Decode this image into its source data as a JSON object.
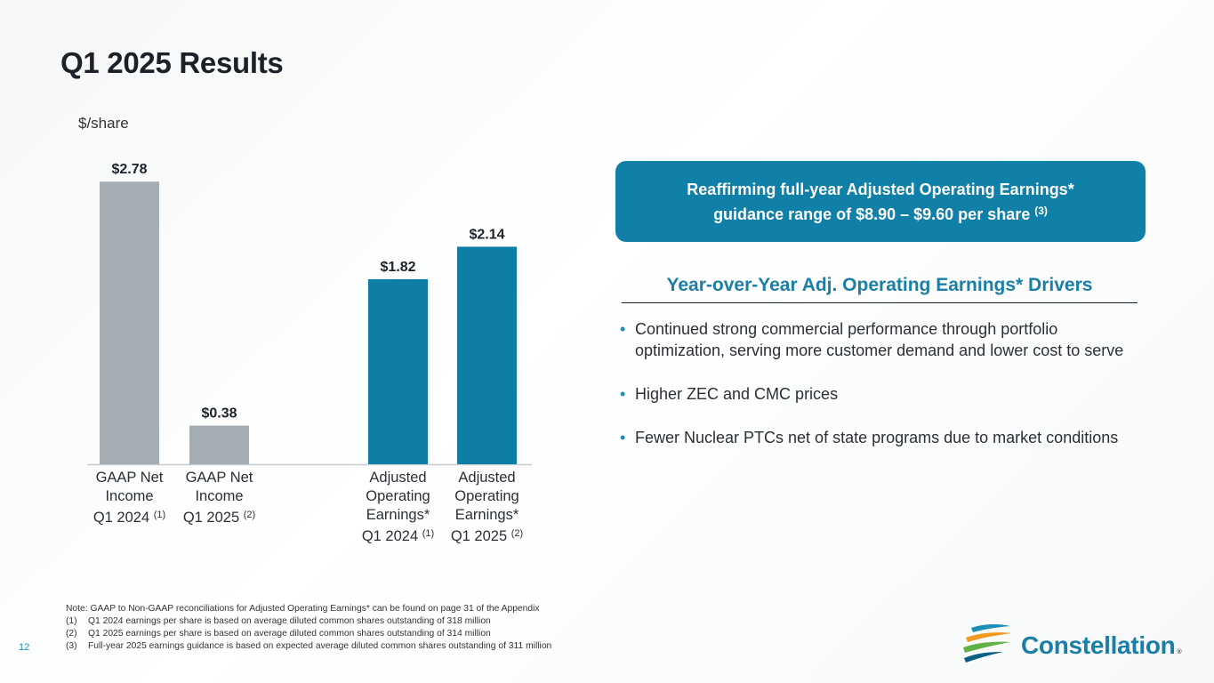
{
  "page": {
    "title": "Q1 2025 Results",
    "unit_label": "$/share",
    "page_number": "12"
  },
  "chart_data": {
    "type": "bar",
    "title": "Q1 2025 Results",
    "ylabel": "$/share",
    "xlabel": "",
    "ylim": [
      0,
      3
    ],
    "grid": false,
    "categories": [
      {
        "line1": "GAAP Net",
        "line2": "Income",
        "line3": "",
        "last": "Q1 2024",
        "note": "(1)"
      },
      {
        "line1": "GAAP Net",
        "line2": "Income",
        "line3": "",
        "last": "Q1 2025",
        "note": "(2)"
      },
      {
        "line1": "Adjusted",
        "line2": "Operating",
        "line3": "Earnings*",
        "last": "Q1 2024",
        "note": "(1)"
      },
      {
        "line1": "Adjusted",
        "line2": "Operating",
        "line3": "Earnings*",
        "last": "Q1 2025",
        "note": "(2)"
      }
    ],
    "values": [
      2.78,
      0.38,
      1.82,
      2.14
    ],
    "labels": [
      "$2.78",
      "$0.38",
      "$1.82",
      "$2.14"
    ],
    "colors": [
      "#a5aeb5",
      "#a5aeb5",
      "#0f7ea6",
      "#0f7ea6"
    ]
  },
  "callout": {
    "line1": "Reaffirming full-year Adjusted Operating Earnings*",
    "line2": "guidance range of $8.90 – $9.60 per share",
    "note": "(3)"
  },
  "drivers": {
    "title": "Year-over-Year Adj. Operating Earnings* Drivers",
    "bullet_char": "•",
    "items": [
      "Continued strong commercial performance through portfolio optimization, serving more customer demand and lower cost to serve",
      "Higher ZEC and CMC prices",
      "Fewer Nuclear PTCs net of state programs due to market conditions"
    ]
  },
  "notes": {
    "main": "Note: GAAP to Non-GAAP reconciliations for Adjusted Operating Earnings* can be found on page 31 of the Appendix",
    "items": [
      {
        "num": "(1)",
        "text": "Q1 2024 earnings per share is based on average diluted common shares outstanding of 318 million"
      },
      {
        "num": "(2)",
        "text": "Q1 2025 earnings per share is based on average diluted common shares outstanding of 314 million"
      },
      {
        "num": "(3)",
        "text": "Full-year 2025 earnings guidance is based on expected average diluted common shares outstanding of 311 million"
      }
    ]
  },
  "logo": {
    "text": "Constellation",
    "registered": "®",
    "colors": [
      "#1a8fb8",
      "#f39a1e",
      "#5fb246",
      "#0d5e86"
    ]
  }
}
